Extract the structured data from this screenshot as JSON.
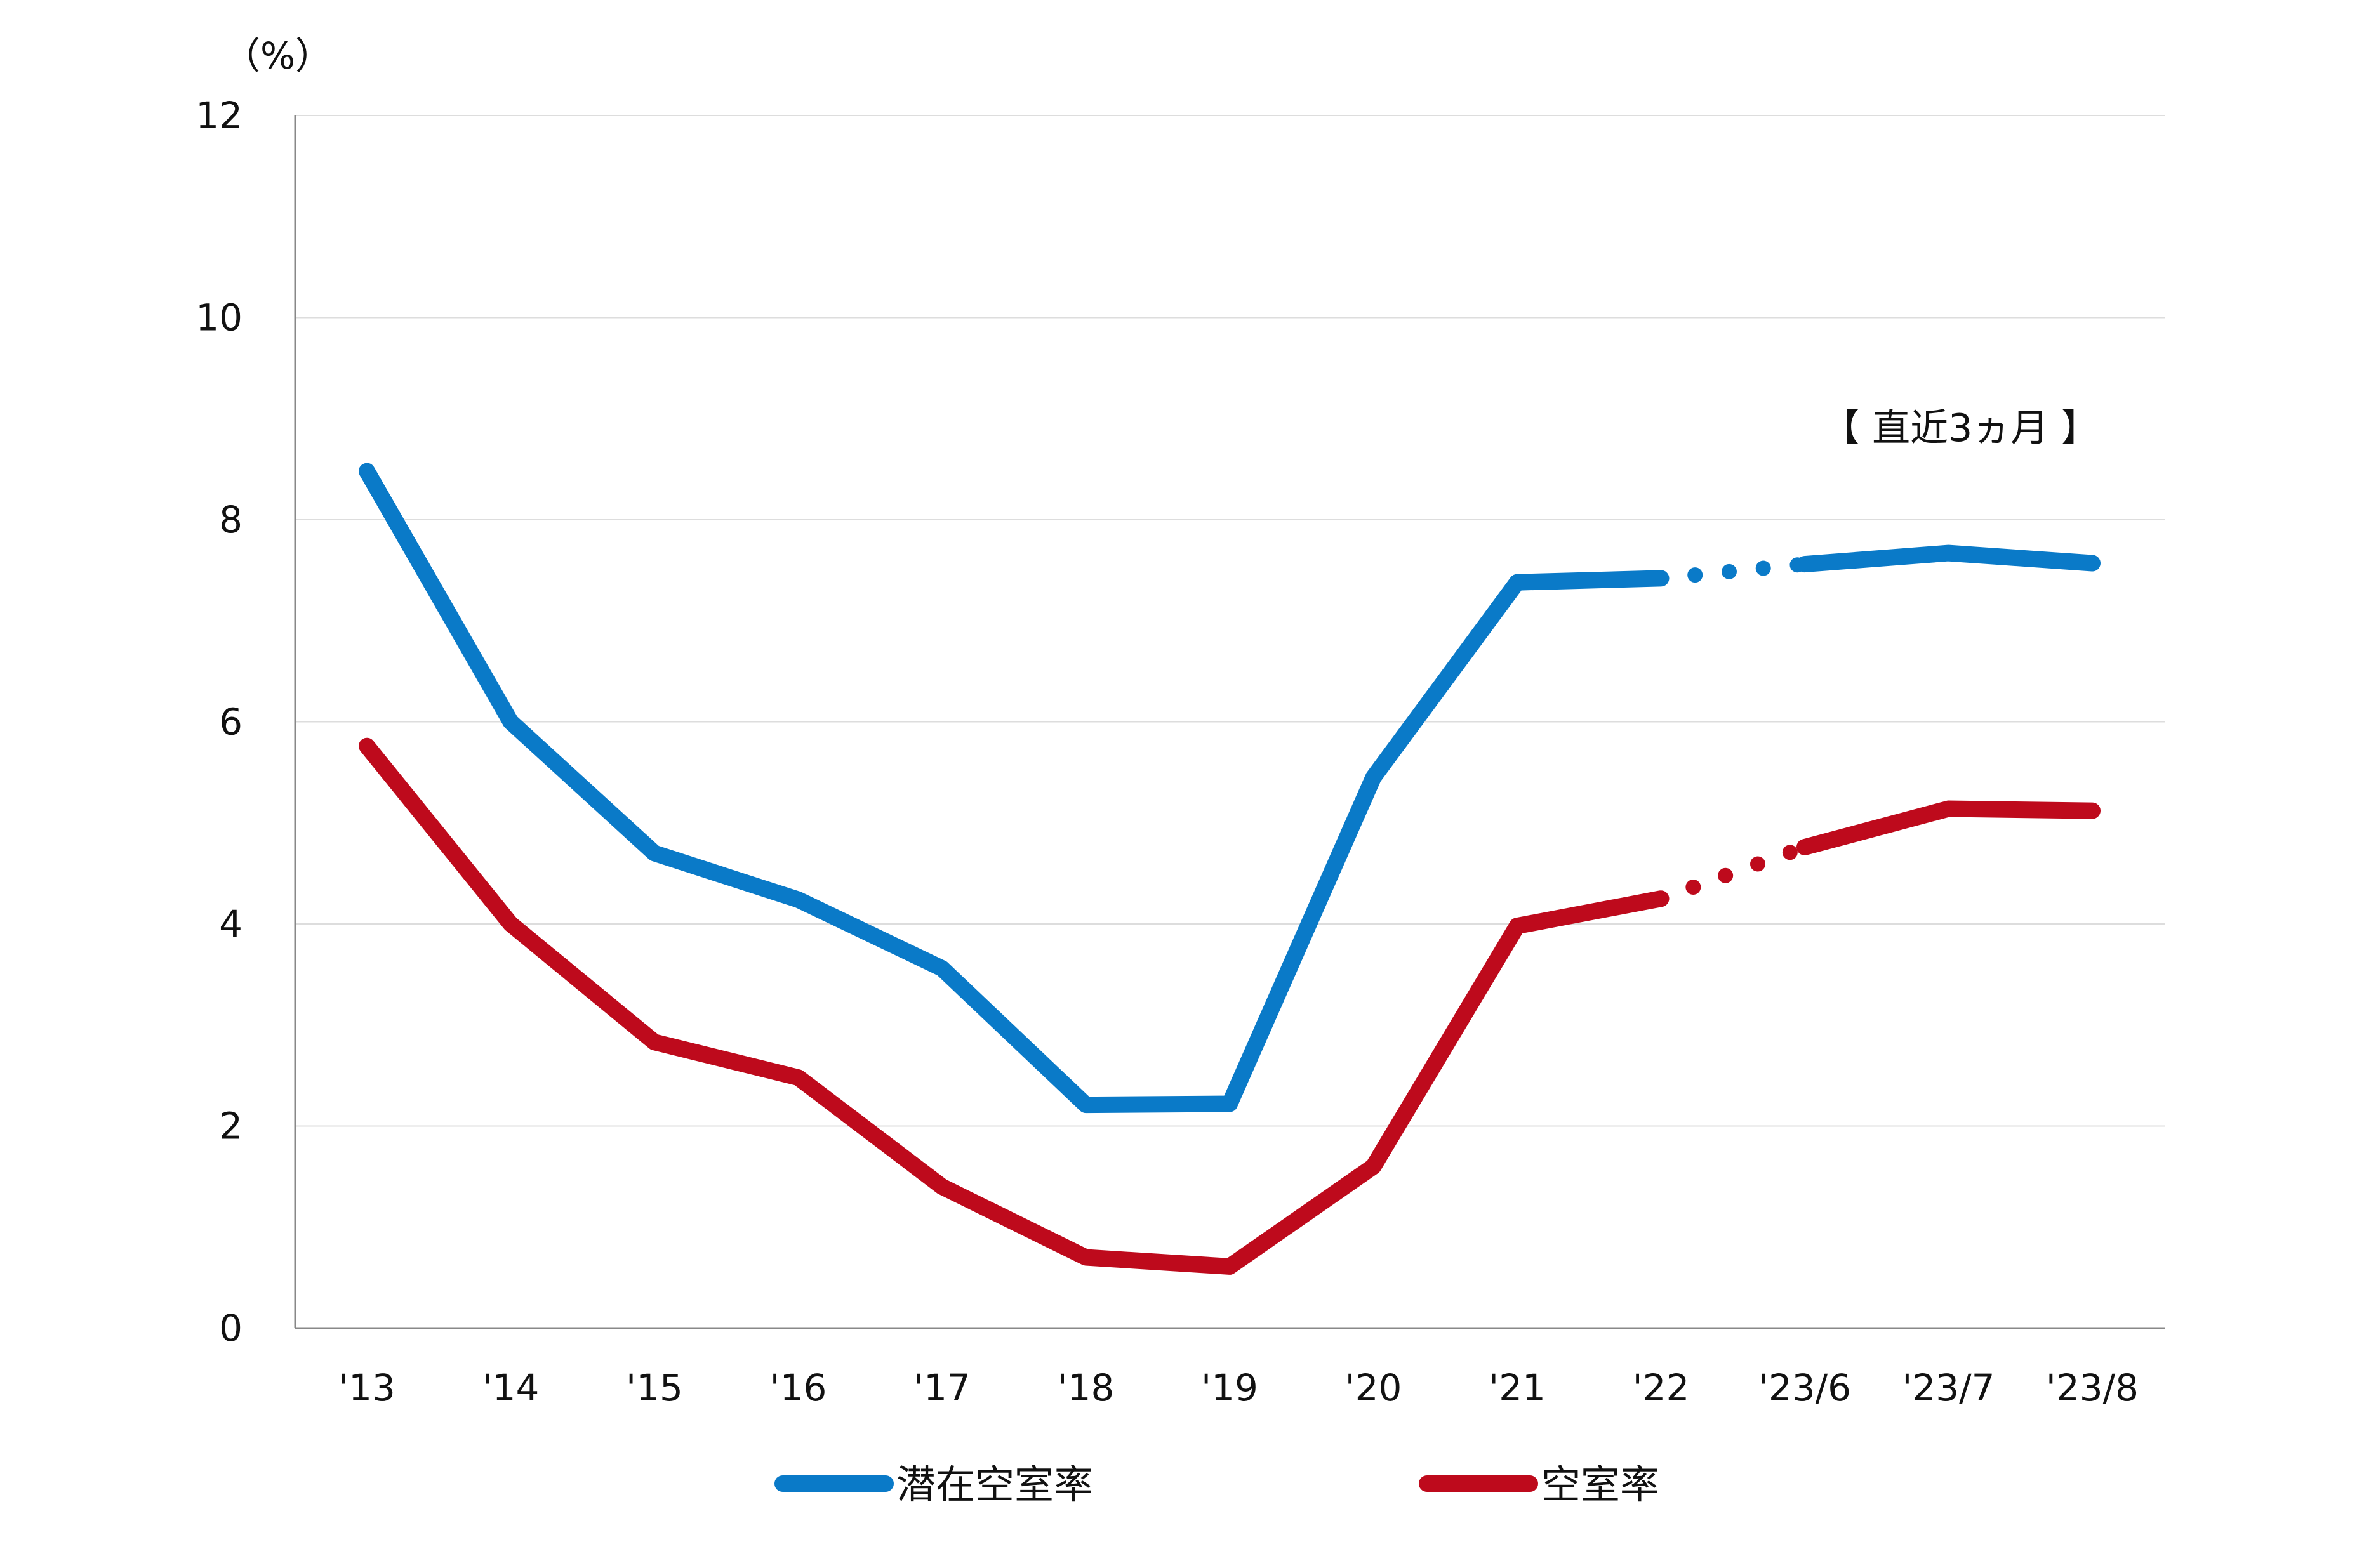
{
  "chart_data": {
    "type": "line",
    "unit_label": "（%）",
    "annotation": "【 直近3ヵ月 】",
    "categories": [
      "'13",
      "'14",
      "'15",
      "'16",
      "'17",
      "'18",
      "'19",
      "'20",
      "'21",
      "'22",
      "'23/6",
      "'23/7",
      "'23/8"
    ],
    "ylim": [
      0,
      12
    ],
    "yticks": [
      "0",
      "2",
      "4",
      "6",
      "8",
      "10",
      "12"
    ],
    "grid": true,
    "legend_position": "bottom",
    "dashed_segment": {
      "from_index": 9,
      "to_index": 10
    },
    "series": [
      {
        "name": "潜在空室率",
        "color": "#0a7ac8",
        "values": [
          8.48,
          6.0,
          4.7,
          4.24,
          3.56,
          2.21,
          2.22,
          5.45,
          7.38,
          7.42,
          7.56,
          7.67,
          7.57
        ]
      },
      {
        "name": "空室率",
        "color": "#be0a1c",
        "values": [
          5.76,
          4.0,
          2.83,
          2.48,
          1.4,
          0.7,
          0.61,
          1.6,
          3.98,
          4.25,
          4.76,
          5.14,
          5.12
        ]
      }
    ]
  }
}
